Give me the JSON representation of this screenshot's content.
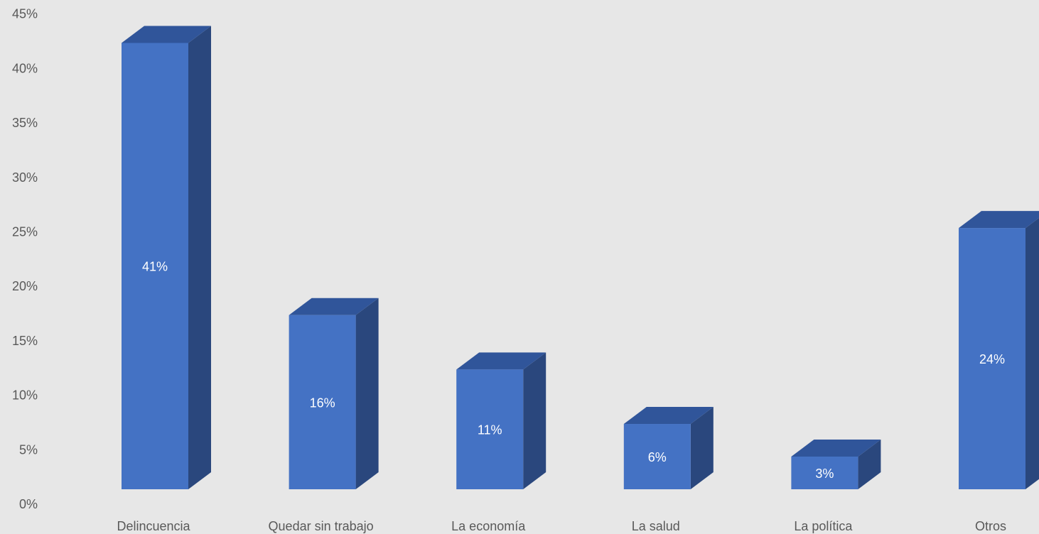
{
  "chart_data": {
    "type": "bar",
    "style": "3d-column",
    "categories": [
      "Delincuencia",
      "Quedar sin trabajo",
      "La economía",
      "La salud",
      "La política",
      "Otros"
    ],
    "values": [
      41,
      16,
      11,
      6,
      3,
      24
    ],
    "data_labels": [
      "41%",
      "16%",
      "11%",
      "6%",
      "3%",
      "24%"
    ],
    "yticks": [
      "0%",
      "5%",
      "10%",
      "15%",
      "20%",
      "25%",
      "30%",
      "35%",
      "40%",
      "45%"
    ],
    "ylim": [
      0,
      45
    ],
    "title": "",
    "xlabel": "",
    "ylabel": "",
    "grid": false,
    "legend": "none",
    "colors": {
      "background": "#e7e7e7",
      "front": "#4472c4",
      "side": "#2a477d",
      "top": "#30559a",
      "axis_text": "#595959",
      "data_label": "#ffffff"
    }
  }
}
